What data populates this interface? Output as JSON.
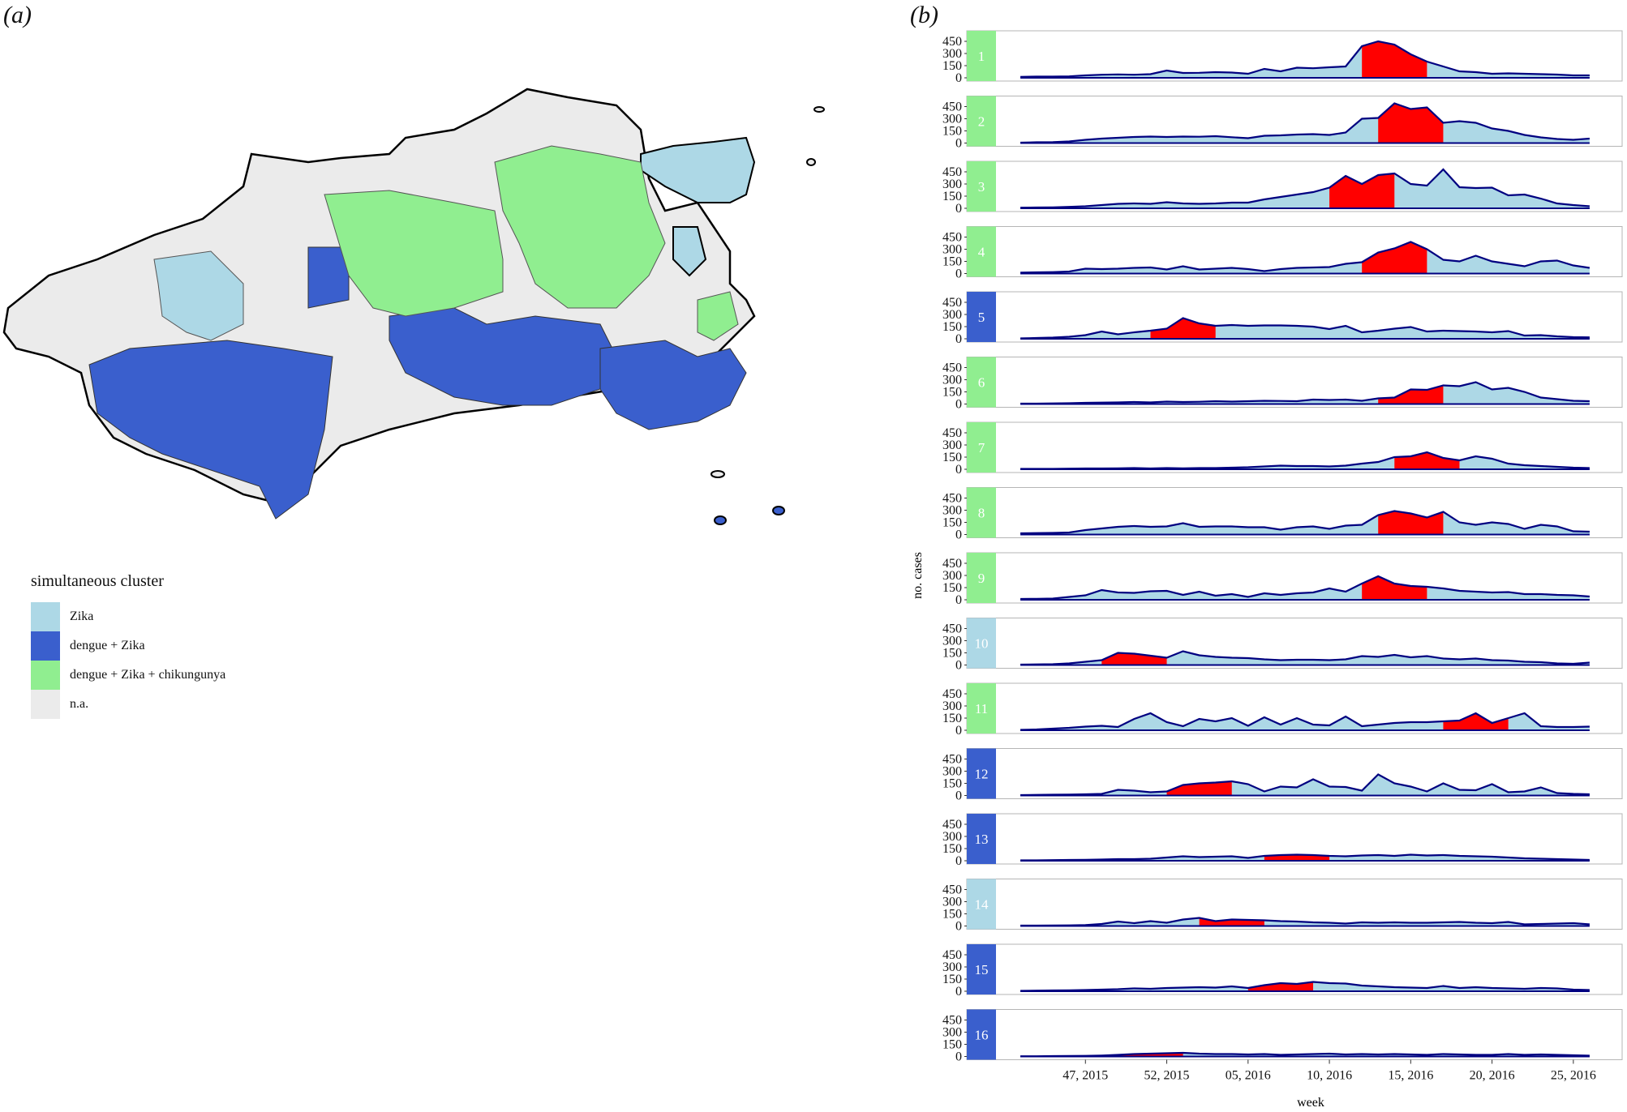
{
  "panel_a": {
    "label": "(a)",
    "legend": {
      "title": "simultaneous cluster",
      "items": [
        {
          "label": "Zika",
          "color": "#add8e6"
        },
        {
          "label": "dengue + Zika",
          "color": "#3a5fcd"
        },
        {
          "label": "dengue + Zika + chikungunya",
          "color": "#90ee90"
        },
        {
          "label": "n.a.",
          "color": "#ebebeb"
        }
      ]
    }
  },
  "panel_b": {
    "label": "(b)"
  },
  "chart_data": {
    "type": "area",
    "xlabel": "week",
    "ylabel": "no. cases",
    "ylim": [
      0,
      500
    ],
    "y_ticks": [
      0,
      150,
      300,
      450
    ],
    "x_tick_labels": [
      "47, 2015",
      "52, 2015",
      "05, 2016",
      "10, 2016",
      "15, 2016",
      "20, 2016",
      "25, 2016"
    ],
    "x_tick_positions": [
      47,
      52,
      57,
      62,
      67,
      72,
      77
    ],
    "x_range": [
      41.5,
      80
    ],
    "x_start": 43,
    "area_color": "#add8e6",
    "line_color": "#000080",
    "highlight_color": "#ff0000",
    "strip_colors": {
      "Zika": "#add8e6",
      "dengue + Zika": "#3a5fcd",
      "dengue + Zika + chikungunya": "#90ee90"
    },
    "panels": [
      {
        "cluster": "1",
        "type": "dengue + Zika + chikungunya",
        "highlight": [
          64,
          68
        ],
        "values": [
          12,
          15,
          15,
          18,
          30,
          38,
          42,
          38,
          45,
          90,
          60,
          62,
          70,
          65,
          50,
          110,
          80,
          125,
          118,
          130,
          140,
          390,
          450,
          410,
          290,
          200,
          140,
          80,
          70,
          50,
          55,
          50,
          45,
          40,
          30,
          30
        ]
      },
      {
        "cluster": "2",
        "type": "dengue + Zika + chikungunya",
        "highlight": [
          65,
          69
        ],
        "values": [
          5,
          10,
          12,
          20,
          40,
          55,
          65,
          75,
          80,
          75,
          80,
          78,
          85,
          72,
          60,
          90,
          95,
          105,
          110,
          100,
          130,
          300,
          310,
          490,
          420,
          440,
          250,
          270,
          250,
          180,
          150,
          100,
          70,
          50,
          40,
          55
        ]
      },
      {
        "cluster": "3",
        "type": "dengue + Zika + chikungunya",
        "highlight": [
          62,
          66
        ],
        "values": [
          8,
          10,
          12,
          18,
          25,
          40,
          55,
          60,
          55,
          75,
          60,
          55,
          60,
          70,
          70,
          110,
          140,
          170,
          200,
          255,
          400,
          300,
          410,
          430,
          300,
          280,
          480,
          260,
          250,
          255,
          160,
          170,
          120,
          60,
          40,
          25
        ]
      },
      {
        "cluster": "4",
        "type": "dengue + Zika + chikungunya",
        "highlight": [
          64,
          68
        ],
        "values": [
          12,
          15,
          18,
          25,
          60,
          55,
          60,
          70,
          75,
          50,
          90,
          50,
          60,
          70,
          55,
          30,
          55,
          70,
          75,
          80,
          120,
          140,
          260,
          310,
          390,
          300,
          170,
          150,
          220,
          150,
          120,
          90,
          150,
          160,
          100,
          70
        ]
      },
      {
        "cluster": "5",
        "type": "dengue + Zika",
        "highlight": [
          51,
          55
        ],
        "values": [
          5,
          10,
          15,
          25,
          45,
          90,
          55,
          80,
          100,
          125,
          255,
          190,
          160,
          170,
          160,
          165,
          165,
          160,
          150,
          120,
          160,
          80,
          100,
          125,
          145,
          90,
          100,
          95,
          90,
          80,
          95,
          40,
          45,
          30,
          20,
          18
        ]
      },
      {
        "cluster": "6",
        "type": "dengue + Zika + chikungunya",
        "highlight": [
          65,
          69
        ],
        "values": [
          5,
          5,
          8,
          10,
          15,
          18,
          20,
          25,
          20,
          30,
          25,
          28,
          35,
          30,
          35,
          40,
          38,
          35,
          55,
          50,
          55,
          40,
          70,
          80,
          180,
          175,
          230,
          220,
          270,
          180,
          200,
          150,
          80,
          60,
          40,
          35
        ]
      },
      {
        "cluster": "7",
        "type": "dengue + Zika + chikungunya",
        "highlight": [
          66,
          70
        ],
        "values": [
          5,
          5,
          5,
          8,
          10,
          10,
          12,
          15,
          10,
          15,
          12,
          15,
          15,
          20,
          25,
          35,
          45,
          40,
          40,
          35,
          45,
          70,
          90,
          150,
          160,
          210,
          140,
          110,
          160,
          130,
          70,
          50,
          40,
          30,
          20,
          15
        ]
      },
      {
        "cluster": "8",
        "type": "dengue + Zika + chikungunya",
        "highlight": [
          65,
          69
        ],
        "values": [
          15,
          18,
          20,
          25,
          55,
          75,
          95,
          105,
          95,
          100,
          140,
          95,
          100,
          100,
          90,
          90,
          60,
          90,
          100,
          70,
          110,
          120,
          240,
          290,
          260,
          210,
          280,
          150,
          120,
          150,
          130,
          70,
          120,
          100,
          40,
          35
        ]
      },
      {
        "cluster": "9",
        "type": "dengue + Zika + chikungunya",
        "highlight": [
          64,
          68
        ],
        "values": [
          10,
          12,
          15,
          35,
          55,
          120,
          90,
          85,
          105,
          110,
          60,
          100,
          50,
          70,
          35,
          80,
          60,
          80,
          90,
          140,
          100,
          200,
          290,
          200,
          170,
          160,
          140,
          110,
          100,
          90,
          95,
          70,
          70,
          60,
          55,
          40
        ]
      },
      {
        "cluster": "10",
        "type": "Zika",
        "highlight": [
          48,
          52
        ],
        "values": [
          5,
          8,
          10,
          20,
          40,
          60,
          150,
          140,
          115,
          90,
          170,
          120,
          100,
          90,
          85,
          70,
          60,
          65,
          65,
          60,
          70,
          110,
          100,
          125,
          95,
          110,
          80,
          70,
          80,
          60,
          55,
          40,
          35,
          20,
          15,
          30
        ]
      },
      {
        "cluster": "11",
        "type": "dengue + Zika + chikungunya",
        "highlight": [
          69,
          73
        ],
        "values": [
          5,
          10,
          20,
          30,
          45,
          55,
          40,
          140,
          210,
          100,
          50,
          140,
          110,
          150,
          55,
          160,
          70,
          150,
          70,
          60,
          170,
          50,
          70,
          90,
          100,
          100,
          110,
          120,
          210,
          90,
          150,
          210,
          50,
          40,
          40,
          45
        ]
      },
      {
        "cluster": "12",
        "type": "dengue + Zika",
        "highlight": [
          52,
          56
        ],
        "values": [
          5,
          8,
          10,
          12,
          15,
          20,
          70,
          60,
          40,
          50,
          130,
          150,
          160,
          175,
          140,
          50,
          110,
          100,
          200,
          110,
          105,
          60,
          260,
          150,
          110,
          50,
          150,
          70,
          65,
          140,
          40,
          50,
          100,
          30,
          20,
          15
        ]
      },
      {
        "cluster": "13",
        "type": "dengue + Zika",
        "highlight": [
          58,
          62
        ],
        "values": [
          5,
          5,
          8,
          10,
          12,
          15,
          20,
          20,
          25,
          40,
          55,
          45,
          50,
          55,
          35,
          60,
          70,
          75,
          70,
          60,
          55,
          65,
          70,
          60,
          75,
          65,
          70,
          60,
          55,
          50,
          40,
          30,
          25,
          20,
          15,
          10
        ]
      },
      {
        "cluster": "14",
        "type": "Zika",
        "highlight": [
          54,
          58
        ],
        "values": [
          5,
          5,
          6,
          8,
          12,
          25,
          55,
          35,
          60,
          40,
          80,
          100,
          60,
          80,
          75,
          70,
          60,
          55,
          45,
          40,
          30,
          45,
          40,
          45,
          40,
          40,
          45,
          50,
          40,
          35,
          50,
          20,
          25,
          30,
          35,
          20
        ]
      },
      {
        "cluster": "15",
        "type": "dengue + Zika",
        "highlight": [
          57,
          61
        ],
        "values": [
          5,
          8,
          10,
          12,
          15,
          20,
          25,
          35,
          30,
          40,
          45,
          50,
          45,
          60,
          40,
          75,
          100,
          90,
          115,
          100,
          95,
          70,
          60,
          50,
          45,
          40,
          65,
          40,
          50,
          40,
          35,
          30,
          40,
          35,
          20,
          15
        ]
      },
      {
        "cluster": "16",
        "type": "dengue + Zika",
        "highlight": [
          49,
          53
        ],
        "values": [
          3,
          3,
          5,
          6,
          8,
          12,
          20,
          30,
          35,
          40,
          45,
          35,
          30,
          30,
          25,
          30,
          20,
          25,
          30,
          35,
          25,
          30,
          25,
          30,
          25,
          20,
          30,
          25,
          20,
          20,
          30,
          20,
          25,
          20,
          15,
          10
        ]
      }
    ]
  }
}
